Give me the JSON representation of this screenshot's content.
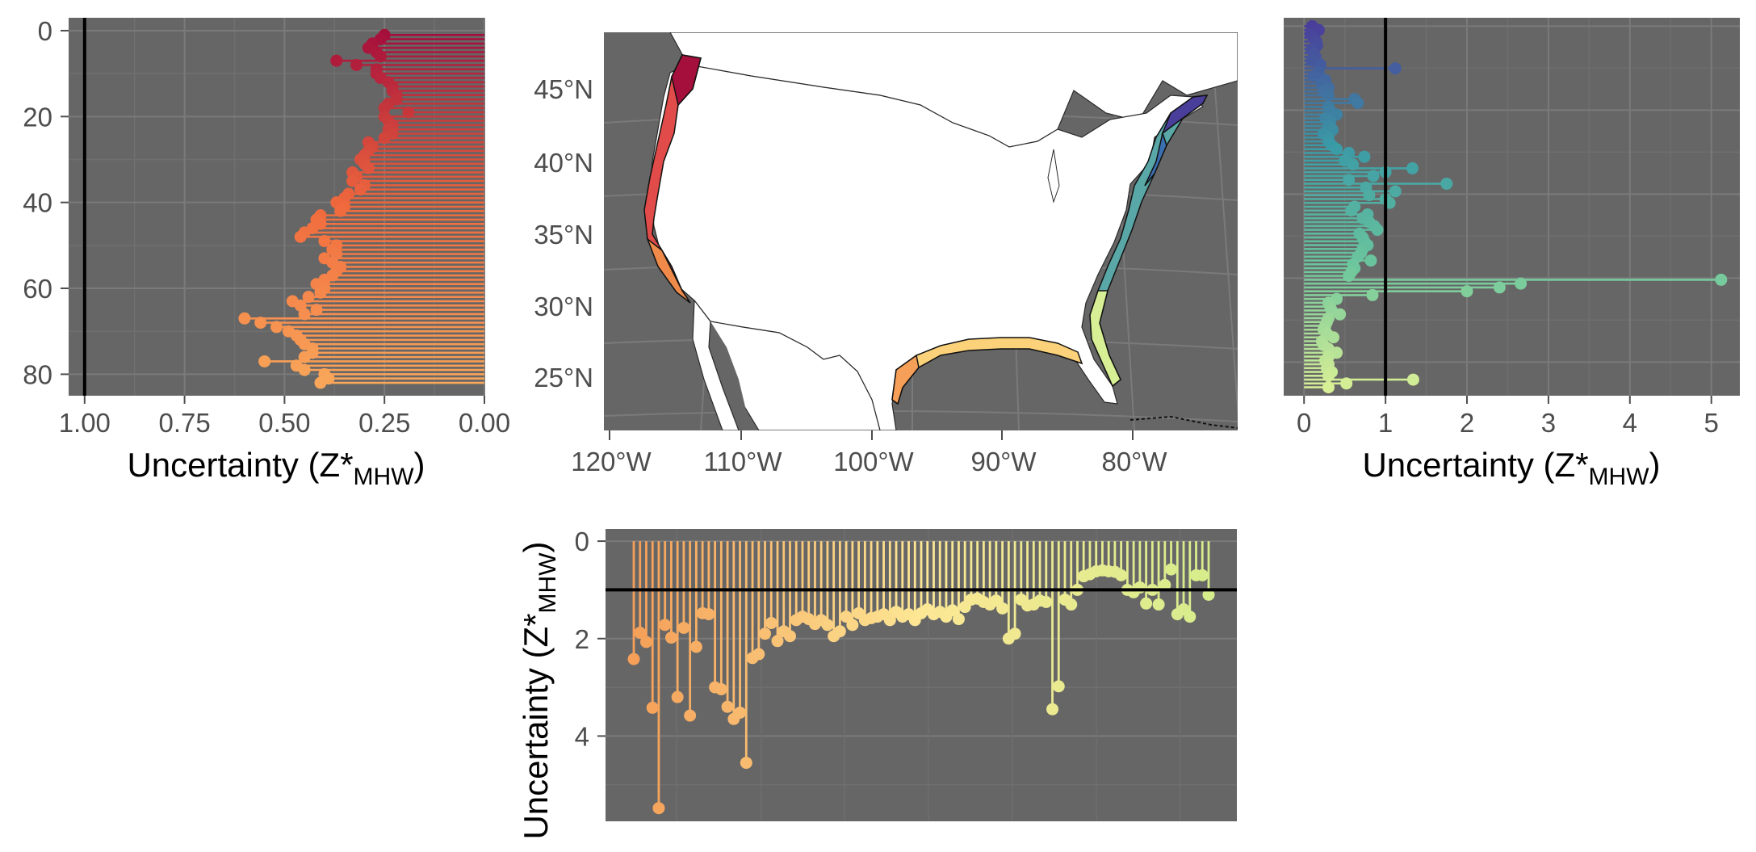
{
  "figure": {
    "colors": {
      "panel_bg": "#666666",
      "grid": "#7a7a7a",
      "grid_minor": "#6f6f6f",
      "ref_line": "#000000",
      "land": "#ffffff",
      "state_line": "#2b2b2b"
    },
    "axis_title_main": "Uncertainty (Z*",
    "axis_title_sub": "MHW",
    "axis_title_close": ")"
  },
  "chart_data": [
    {
      "id": "west-coast",
      "type": "lollipop",
      "orientation": "horizontal",
      "x_reversed": true,
      "xlim": [
        1.04,
        0
      ],
      "ylim": [
        -3,
        85
      ],
      "x_ticks": [
        "1.00",
        "0.75",
        "0.50",
        "0.25",
        "0.00"
      ],
      "x_tick_values": [
        1.0,
        0.75,
        0.5,
        0.25,
        0.0
      ],
      "y_ticks": [
        "0",
        "20",
        "40",
        "60",
        "80"
      ],
      "y_tick_values": [
        0,
        20,
        40,
        60,
        80
      ],
      "reference_line": 1.0,
      "xlabel": "Uncertainty (Z*MHW)",
      "color_start": "#a50f3c",
      "color_mid": "#f06a3d",
      "color_end": "#f9a65a",
      "values": [
        0.25,
        0.26,
        0.28,
        0.29,
        0.27,
        0.26,
        0.37,
        0.32,
        0.27,
        0.27,
        0.26,
        0.24,
        0.23,
        0.23,
        0.22,
        0.22,
        0.24,
        0.25,
        0.19,
        0.25,
        0.24,
        0.23,
        0.24,
        0.23,
        0.25,
        0.29,
        0.28,
        0.29,
        0.3,
        0.31,
        0.3,
        0.29,
        0.33,
        0.32,
        0.33,
        0.3,
        0.31,
        0.34,
        0.35,
        0.37,
        0.35,
        0.36,
        0.41,
        0.42,
        0.41,
        0.43,
        0.45,
        0.46,
        0.4,
        0.37,
        0.38,
        0.37,
        0.4,
        0.38,
        0.36,
        0.37,
        0.38,
        0.4,
        0.42,
        0.4,
        0.41,
        0.44,
        0.48,
        0.46,
        0.42,
        0.45,
        0.6,
        0.56,
        0.52,
        0.49,
        0.47,
        0.46,
        0.45,
        0.43,
        0.43,
        0.45,
        0.55,
        0.47,
        0.45,
        0.4,
        0.39,
        0.41
      ]
    },
    {
      "id": "east-coast",
      "type": "lollipop",
      "orientation": "horizontal",
      "x_reversed": false,
      "xlim": [
        -0.25,
        5.35
      ],
      "ylim": [
        -2,
        88
      ],
      "x_ticks": [
        "0",
        "1",
        "2",
        "3",
        "4",
        "5"
      ],
      "x_tick_values": [
        0,
        1,
        2,
        3,
        4,
        5
      ],
      "reference_line": 1.0,
      "xlabel": "Uncertainty (Z*MHW)",
      "color_start": "#4a3e9b",
      "color_mid": "#3a9aa6",
      "color_stop2": "#6cc69d",
      "color_end": "#d7ef95",
      "values": [
        0.1,
        0.18,
        0.08,
        0.12,
        0.15,
        0.16,
        0.1,
        0.12,
        0.14,
        0.1,
        0.2,
        1.12,
        0.18,
        0.12,
        0.26,
        0.22,
        0.3,
        0.24,
        0.3,
        0.62,
        0.66,
        0.3,
        0.32,
        0.4,
        0.26,
        0.32,
        0.3,
        0.35,
        0.24,
        0.3,
        0.3,
        0.34,
        0.4,
        0.55,
        0.74,
        0.5,
        0.6,
        1.33,
        1.0,
        0.85,
        0.55,
        1.75,
        0.76,
        1.12,
        0.8,
        1.0,
        1.05,
        0.62,
        0.58,
        0.78,
        0.72,
        0.8,
        0.86,
        0.9,
        0.68,
        0.72,
        0.74,
        0.78,
        0.72,
        0.7,
        0.66,
        0.82,
        0.6,
        0.62,
        0.58,
        0.55,
        5.12,
        2.66,
        2.4,
        2.0,
        0.84,
        0.4,
        0.3,
        0.32,
        0.34,
        0.44,
        0.3,
        0.28,
        0.26,
        0.24,
        0.28,
        0.36,
        0.22,
        0.24,
        0.3,
        0.4,
        0.3,
        0.26,
        0.3,
        0.28,
        0.34,
        0.3,
        1.34,
        0.52,
        0.3
      ]
    },
    {
      "id": "gulf-coast",
      "type": "lollipop",
      "orientation": "vertical",
      "y_reversed": true,
      "ylim": [
        -0.25,
        5.75
      ],
      "y_ticks": [
        "0",
        "2",
        "4"
      ],
      "y_tick_values": [
        0,
        2,
        4
      ],
      "reference_line": 1.0,
      "ylabel": "Uncertainty (Z*MHW)",
      "color_start": "#f59f58",
      "color_mid": "#fde795",
      "color_end": "#d6ed8c",
      "values": [
        2.42,
        1.88,
        2.07,
        3.42,
        5.48,
        1.72,
        1.98,
        3.2,
        1.78,
        3.58,
        2.17,
        1.48,
        1.5,
        3.0,
        3.04,
        3.4,
        3.65,
        3.52,
        4.55,
        2.4,
        2.32,
        1.9,
        1.68,
        2.05,
        1.85,
        1.95,
        1.62,
        1.55,
        1.6,
        1.7,
        1.62,
        1.72,
        1.95,
        1.85,
        1.55,
        1.72,
        1.48,
        1.62,
        1.58,
        1.55,
        1.5,
        1.62,
        1.45,
        1.55,
        1.5,
        1.62,
        1.48,
        1.4,
        1.5,
        1.45,
        1.55,
        1.42,
        1.6,
        1.35,
        1.2,
        1.18,
        1.25,
        1.3,
        1.22,
        1.38,
        2.0,
        1.9,
        1.2,
        1.32,
        1.3,
        1.22,
        1.25,
        3.45,
        2.98,
        1.2,
        1.3,
        1.0,
        0.72,
        0.68,
        0.62,
        0.6,
        0.62,
        0.63,
        0.7,
        1.0,
        1.05,
        0.95,
        1.28,
        1.0,
        1.3,
        0.9,
        0.58,
        1.5,
        1.4,
        1.55,
        0.7,
        0.7,
        1.1
      ]
    },
    {
      "id": "map",
      "type": "map",
      "lat_ticks": [
        "25°N",
        "30°N",
        "35°N",
        "40°N",
        "45°N"
      ],
      "lon_ticks": [
        "120°W",
        "110°W",
        "100°W",
        "90°W",
        "80°W"
      ]
    }
  ]
}
